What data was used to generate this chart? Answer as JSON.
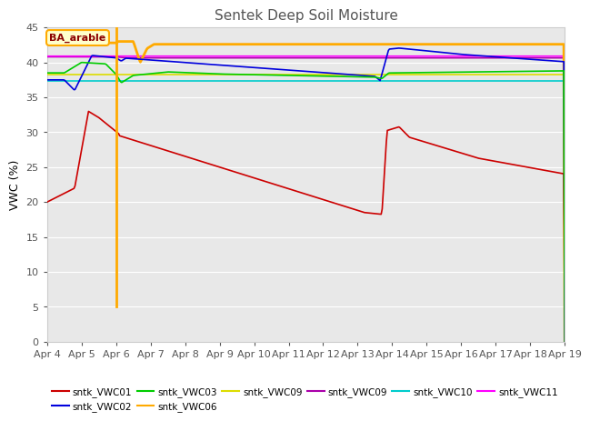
{
  "title": "Sentek Deep Soil Moisture",
  "ylabel": "VWC (%)",
  "ylim": [
    0,
    45
  ],
  "yticks": [
    0,
    5,
    10,
    15,
    20,
    25,
    30,
    35,
    40,
    45
  ],
  "background_color": "#ffffff",
  "plot_bg_color": "#e8e8e8",
  "annotation_text": "BA_arable",
  "vline_color": "#ffaa00",
  "vline_x": 2.0,
  "series_colors": {
    "vwc01": "#cc0000",
    "vwc02": "#0000dd",
    "vwc03": "#00cc00",
    "vwc06": "#ffaa00",
    "vwc09y": "#dddd00",
    "vwc09p": "#aa00aa",
    "vwc10": "#00cccc",
    "vwc11": "#ff00ff"
  },
  "tick_labels": [
    "Apr 4",
    "Apr 5",
    "Apr 6",
    "Apr 7",
    "Apr 8",
    "Apr 9",
    "Apr 10",
    "Apr 11",
    "Apr 12",
    "Apr 13",
    "Apr 14",
    "Apr 15",
    "Apr 16",
    "Apr 17",
    "Apr 18",
    "Apr 19"
  ]
}
